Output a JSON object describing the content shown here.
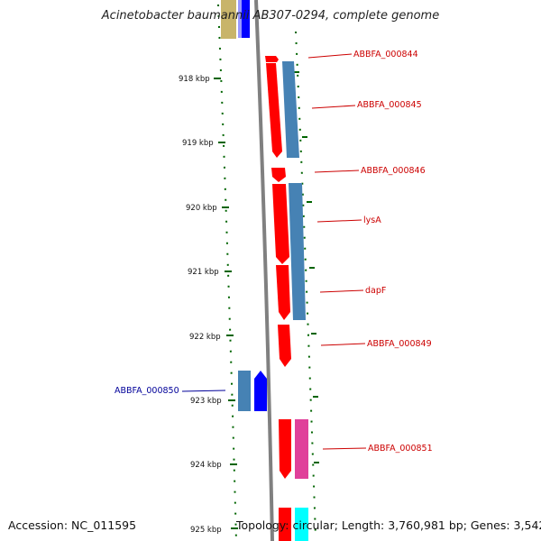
{
  "title": "Acinetobacter baumannii AB307-0294, complete genome",
  "footer": {
    "accession": "Accession: NC_011595",
    "stats": "Topology: circular; Length: 3,760,981 bp; Genes: 3,542"
  },
  "colors": {
    "forward_cds": "#ff0000",
    "gene_blue": "#4682b4",
    "reverse_cds": "#0000ff",
    "pink": "#e0409a",
    "cyan": "#00ffff",
    "olive": "#c8b46a",
    "tick_green": "#006400",
    "backbone": "#808080",
    "label_red": "#cc0000",
    "label_blue": "#000099"
  },
  "ticks": [
    "918 kbp",
    "919 kbp",
    "920 kbp",
    "921 kbp",
    "922 kbp",
    "923 kbp",
    "924 kbp",
    "925 kbp"
  ],
  "genes": [
    {
      "label": "ABBFA_000844",
      "strand": "forward"
    },
    {
      "label": "ABBFA_000845",
      "strand": "forward"
    },
    {
      "label": "ABBFA_000846",
      "strand": "forward"
    },
    {
      "label": "lysA",
      "strand": "forward"
    },
    {
      "label": "dapF",
      "strand": "forward"
    },
    {
      "label": "ABBFA_000849",
      "strand": "forward"
    },
    {
      "label": "ABBFA_000850",
      "strand": "reverse"
    },
    {
      "label": "ABBFA_000851",
      "strand": "forward"
    }
  ]
}
